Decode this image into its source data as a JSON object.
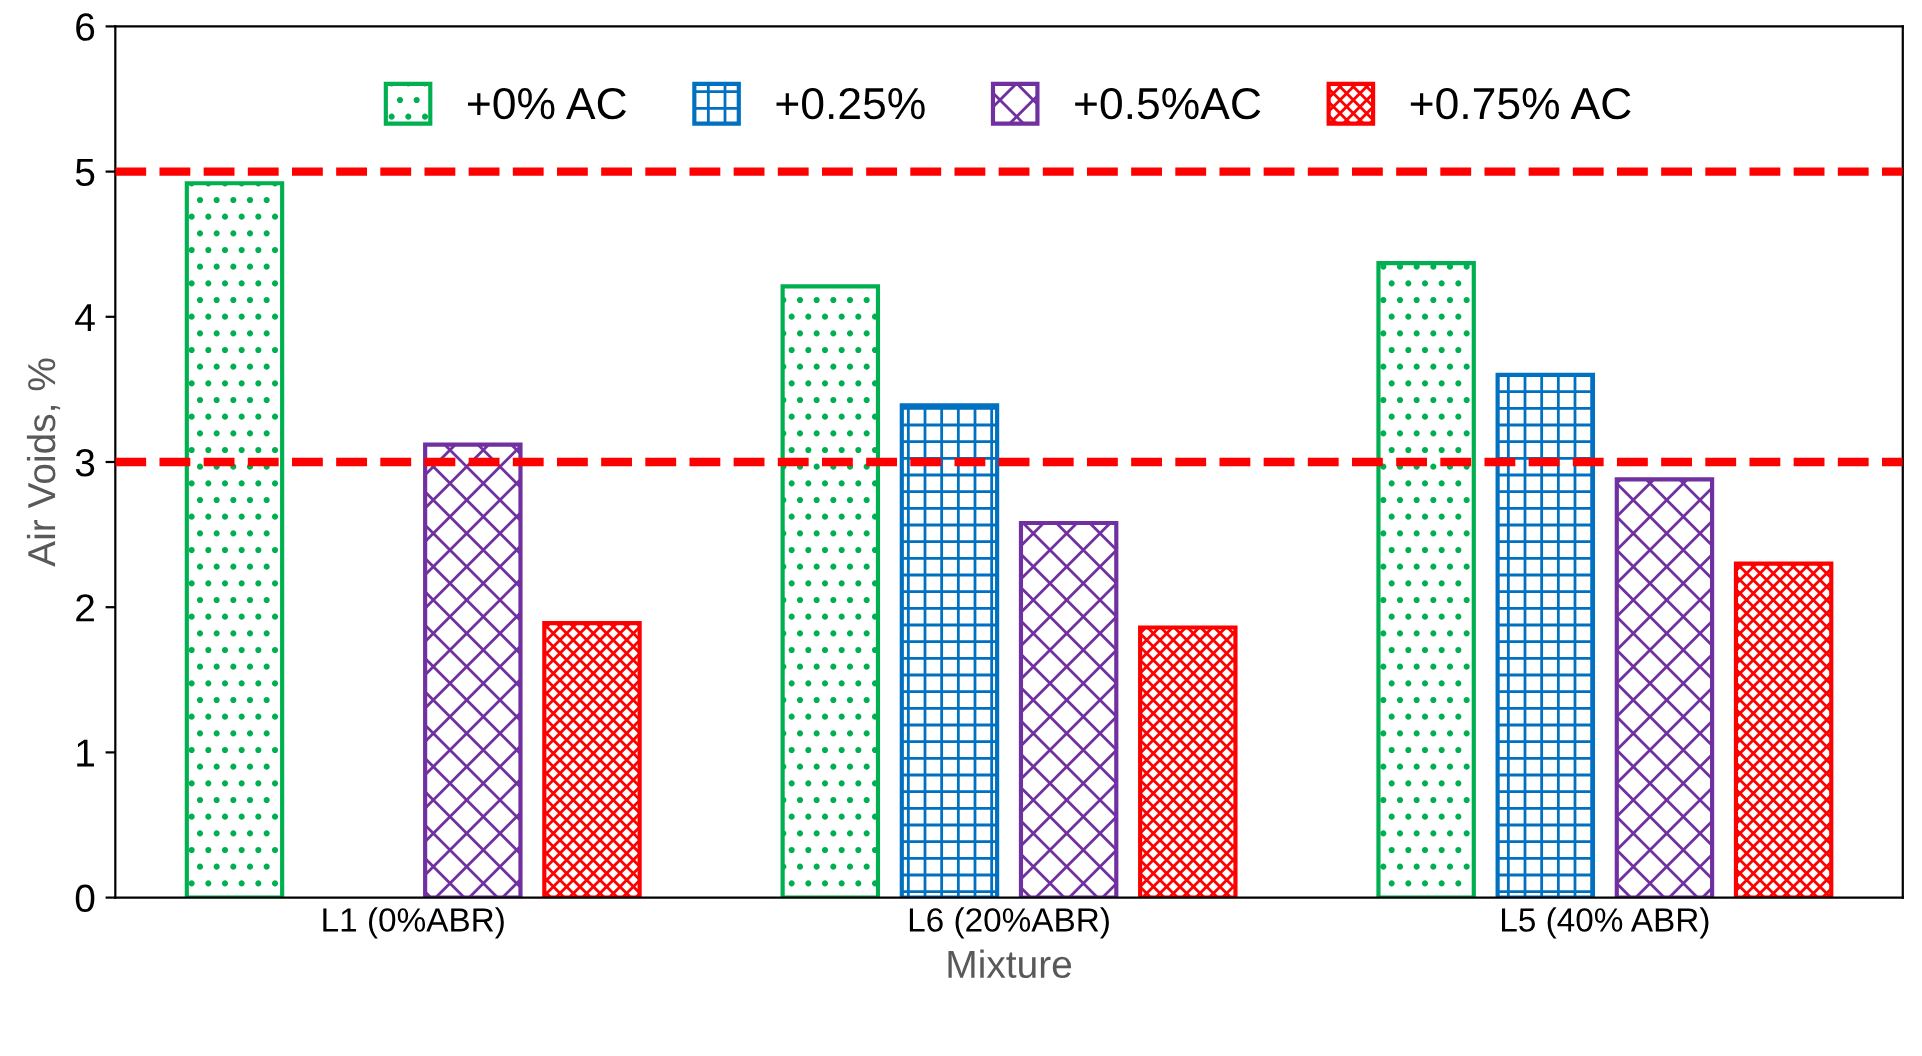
{
  "chart_data": {
    "type": "bar",
    "xlabel": "Mixture",
    "ylabel": "Air Voids, %",
    "categories": [
      "L1 (0%ABR)",
      "L6 (20%ABR)",
      "L5 (40% ABR)"
    ],
    "series": [
      {
        "name": "+0% AC",
        "color": "#00b050",
        "values": [
          4.92,
          4.21,
          4.37
        ]
      },
      {
        "name": "+0.25%",
        "color": "#0070c0",
        "values": [
          null,
          3.39,
          3.6
        ]
      },
      {
        "name": "+0.5%AC",
        "color": "#7030a0",
        "values": [
          3.12,
          2.58,
          2.88
        ]
      },
      {
        "name": "+0.75% AC",
        "color": "#ff0000",
        "values": [
          1.89,
          1.86,
          2.3
        ]
      }
    ],
    "ylim": [
      0,
      6
    ],
    "yticks": [
      0,
      1,
      2,
      3,
      4,
      5,
      6
    ],
    "grid": false,
    "legend": "top",
    "ref_lines": [
      {
        "axis": "y",
        "value": 5,
        "color": "#ff0000",
        "line_style": "dashed"
      },
      {
        "axis": "y",
        "value": 3,
        "color": "#ff0000",
        "line_style": "dashed"
      }
    ]
  }
}
